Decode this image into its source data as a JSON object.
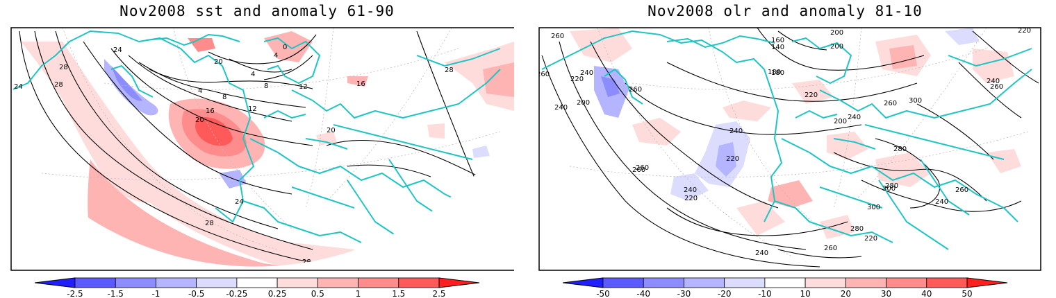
{
  "panels": [
    {
      "title": "Nov2008 sst and anomaly 61-90",
      "colorbar": {
        "colors": [
          "#1f1fff",
          "#5a5aff",
          "#8c8cff",
          "#b4b4ff",
          "#dcdcff",
          "#ffffff",
          "#ffdcdc",
          "#ffb4b4",
          "#ff8c8c",
          "#ff5a5a",
          "#ff1f1f"
        ],
        "labels": [
          "-2.5",
          "-1.5",
          "-1",
          "-0.5",
          "-0.25",
          "0.25",
          "0.5",
          "1",
          "1.5",
          "2.5"
        ]
      },
      "contour_labels": [
        "24",
        "28",
        "28",
        "28",
        "24",
        "4",
        "0",
        "8",
        "12",
        "16",
        "20",
        "20",
        "4",
        "8",
        "4",
        "12",
        "16",
        "20",
        "24",
        "28",
        "28"
      ]
    },
    {
      "title": "Nov2008 olr and anomaly 81-10",
      "colorbar": {
        "colors": [
          "#1f1fff",
          "#5a5aff",
          "#8c8cff",
          "#b4b4ff",
          "#dcdcff",
          "#ffffff",
          "#ffdcdc",
          "#ffb4b4",
          "#ff8c8c",
          "#ff5a5a",
          "#ff1f1f"
        ],
        "labels": [
          "-50",
          "-40",
          "-30",
          "-20",
          "-10",
          "10",
          "20",
          "30",
          "40",
          "50"
        ]
      },
      "contour_labels": [
        "260",
        "240",
        "220",
        "200",
        "240",
        "260",
        "260",
        "220",
        "240",
        "260",
        "220",
        "240",
        "260",
        "280",
        "300",
        "280",
        "260",
        "240",
        "220",
        "200",
        "180",
        "160",
        "140",
        "180",
        "200",
        "220",
        "240",
        "260",
        "300",
        "260",
        "240",
        "220",
        "200",
        "300",
        "280",
        "260",
        "240"
      ]
    }
  ]
}
